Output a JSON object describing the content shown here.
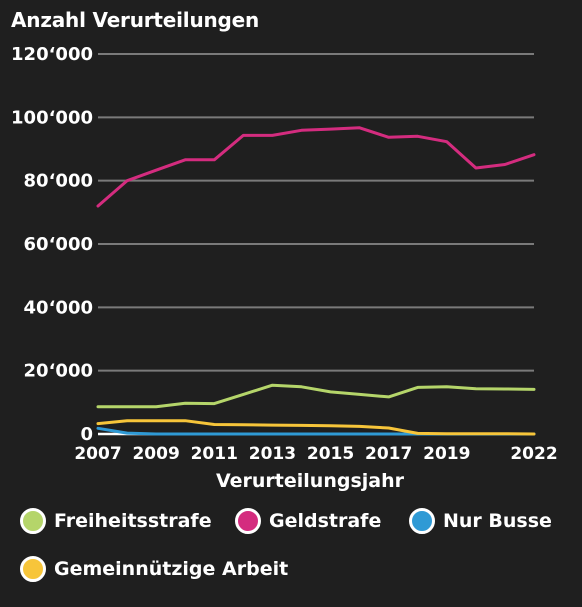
{
  "chart_data": {
    "type": "line",
    "title": "Anzahl Verurteilungen",
    "xlabel": "Verurteilungsjahr",
    "ylabel": "",
    "x": [
      2007,
      2008,
      2009,
      2010,
      2011,
      2012,
      2013,
      2014,
      2015,
      2016,
      2017,
      2018,
      2019,
      2020,
      2021,
      2022
    ],
    "xticks": [
      2007,
      2009,
      2011,
      2013,
      2015,
      2017,
      2019,
      2022
    ],
    "xtick_labels": [
      "2007",
      "2009",
      "2011",
      "2013",
      "2015",
      "2017",
      "2019",
      "2022"
    ],
    "xlim": [
      2007,
      2022
    ],
    "ylim": [
      0,
      120000
    ],
    "yticks": [
      0,
      20000,
      40000,
      60000,
      80000,
      100000,
      120000
    ],
    "ytick_labels": [
      "0",
      "20‘000",
      "40‘000",
      "60‘000",
      "80‘000",
      "100‘000",
      "120‘000"
    ],
    "grid": true,
    "legend_position": "bottom",
    "series": [
      {
        "name": "Freiheitsstrafe",
        "color": "#b5d56a",
        "values": [
          8600,
          8600,
          8600,
          9700,
          9600,
          12500,
          15400,
          14900,
          13300,
          12500,
          11700,
          14700,
          14900,
          14300,
          14200,
          14100
        ]
      },
      {
        "name": "Geldstrafe",
        "color": "#d42c7f",
        "values": [
          72000,
          80000,
          83300,
          86600,
          86600,
          94300,
          94300,
          95900,
          96300,
          96700,
          93700,
          94000,
          92300,
          84000,
          85100,
          88200
        ]
      },
      {
        "name": "Nur Busse",
        "color": "#2f9ad5",
        "values": [
          1800,
          300,
          0,
          0,
          0,
          0,
          0,
          0,
          0,
          0,
          0,
          0,
          0,
          0,
          0,
          0
        ]
      },
      {
        "name": "Gemeinnützige Arbeit",
        "color": "#f7c53a",
        "values": [
          3300,
          4200,
          4200,
          4200,
          3000,
          2900,
          2800,
          2700,
          2600,
          2400,
          1900,
          200,
          100,
          100,
          100,
          0
        ]
      }
    ]
  }
}
